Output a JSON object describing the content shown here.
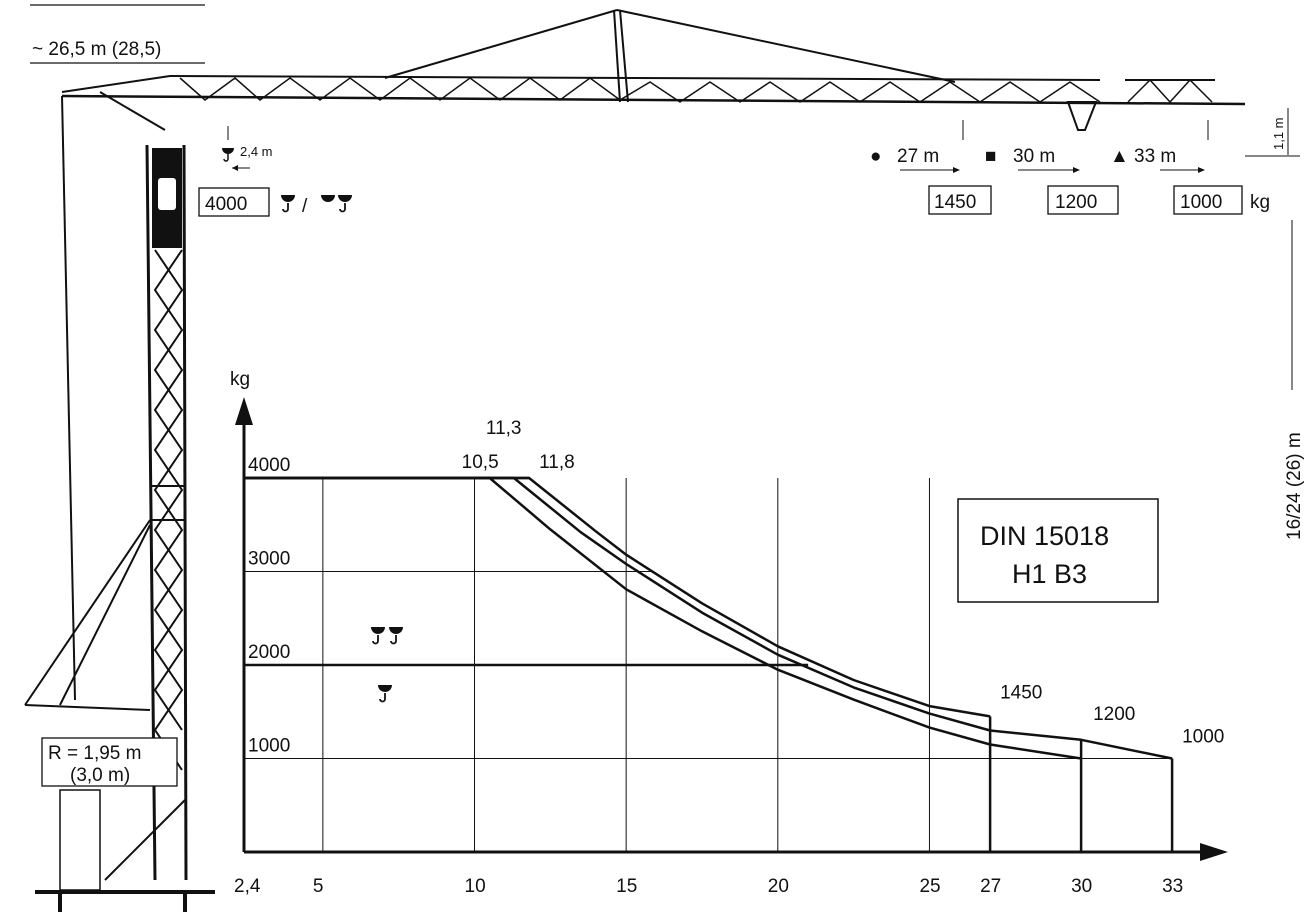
{
  "header": {
    "jib_length_label": "~ 26,5 m (28,5)",
    "inner_hook_offset": "2,4 m",
    "min_radius_load": "4000",
    "hook_modes_separator": "/",
    "rise_label": "1,1 m",
    "height_label": "16/24 (26) m",
    "unit_kg": "kg"
  },
  "jib_configs": [
    {
      "symbol": "●",
      "radius": "27 m",
      "load": "1450"
    },
    {
      "symbol": "■",
      "radius": "30 m",
      "load": "1200"
    },
    {
      "symbol": "▲",
      "radius": "33 m",
      "load": "1000"
    }
  ],
  "base": {
    "radius_line1": "R = 1,95 m",
    "radius_line2": "(3,0 m)"
  },
  "standard_box": {
    "line1": "DIN 15018",
    "line2": "H1 B3"
  },
  "chart_data": {
    "type": "line",
    "ylabel": "kg",
    "xlabel": "",
    "x_ticks": [
      "2,4",
      "5",
      "10",
      "15",
      "20",
      "25",
      "27",
      "30",
      "33"
    ],
    "y_ticks": [
      "1000",
      "2000",
      "3000",
      "4000"
    ],
    "xlim": [
      2.4,
      33
    ],
    "ylim": [
      0,
      4000
    ],
    "point_labels": [
      {
        "text": "10,5",
        "x": 10.5,
        "y": 4000
      },
      {
        "text": "11,3",
        "x": 11.3,
        "y": 4000
      },
      {
        "text": "11,8",
        "x": 11.8,
        "y": 4000
      },
      {
        "text": "1450",
        "x": 27,
        "y": 1450
      },
      {
        "text": "1200",
        "x": 30,
        "y": 1200
      },
      {
        "text": "1000",
        "x": 33,
        "y": 1000
      }
    ],
    "series": [
      {
        "x": [
          2.4,
          10.5,
          12.5,
          15,
          17.5,
          20,
          22.5,
          25,
          27,
          30
        ],
        "y": [
          4000,
          4000,
          3450,
          2810,
          2360,
          1950,
          1630,
          1330,
          1150,
          1000
        ]
      },
      {
        "x": [
          2.4,
          11.3,
          13.5,
          15,
          17.5,
          20,
          22.5,
          25,
          27,
          30,
          33
        ],
        "y": [
          4000,
          4000,
          3420,
          3080,
          2560,
          2110,
          1760,
          1480,
          1300,
          1200,
          1000
        ]
      },
      {
        "x": [
          2.4,
          11.8,
          14,
          15,
          17.5,
          20,
          22.5,
          25,
          27
        ],
        "y": [
          4000,
          4000,
          3430,
          3180,
          2660,
          2200,
          1840,
          1560,
          1450
        ]
      }
    ]
  }
}
